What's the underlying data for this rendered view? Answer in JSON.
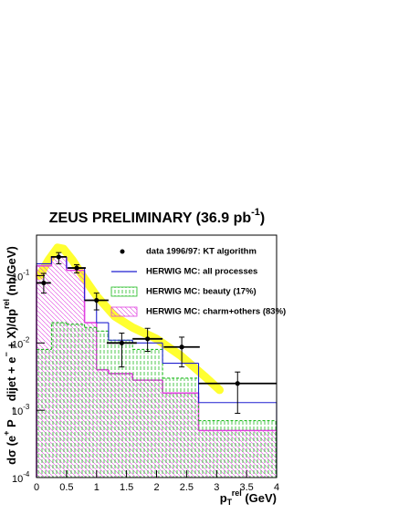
{
  "chart_data": {
    "type": "histogram",
    "title": [
      {
        "text": "ZEUS PRELIMINARY (36.9 pb"
      },
      {
        "text": "-1",
        "shift": "sup"
      },
      {
        "text": ")"
      }
    ],
    "x_label": [
      {
        "text": "p"
      },
      {
        "text": "T",
        "shift": "sub"
      },
      {
        "text": "rel",
        "shift": "sup"
      },
      {
        "text": " (GeV)"
      }
    ],
    "y_label": [
      {
        "text": "dσ (e"
      },
      {
        "text": "+",
        "shift": "sup"
      },
      {
        "text": " P → dijet + e"
      },
      {
        "text": "−",
        "shift": "sup"
      },
      {
        "text": " + X)/dp"
      },
      {
        "text": "rel",
        "shift": "sup"
      },
      {
        "text": " (nb/GeV)"
      }
    ],
    "xlim": [
      0,
      4
    ],
    "xticks": [
      0,
      0.5,
      1,
      1.5,
      2,
      2.5,
      3,
      3.5,
      4
    ],
    "ylim": [
      0.0001,
      0.4
    ],
    "log_y": true,
    "yticks": [
      {
        "value": 0.0001,
        "label": "10",
        "exponent": "-4"
      },
      {
        "value": 0.001,
        "label": "10",
        "exponent": "-3"
      },
      {
        "value": 0.01,
        "label": "10",
        "exponent": "-2"
      },
      {
        "value": 0.1,
        "label": "10",
        "exponent": "-1"
      }
    ],
    "bins": [
      0,
      0.25,
      0.5,
      0.8,
      1.0,
      1.2,
      1.6,
      2.1,
      2.7,
      4
    ],
    "series": [
      {
        "name": "HERWIG MC: all processes",
        "color": "#1f1fd0",
        "fill": "none",
        "values": [
          0.15,
          0.19,
          0.13,
          0.043,
          0.02,
          0.011,
          0.01,
          0.005,
          0.0013
        ]
      },
      {
        "name": "HERWIG MC: beauty (17%)",
        "color": "#22bb22",
        "fill": "vhatch",
        "values": [
          0.008,
          0.02,
          0.019,
          0.017,
          0.015,
          0.011,
          0.008,
          0.003,
          0.0007
        ]
      },
      {
        "name": "HERWIG MC: charm+others (83%)",
        "color": "#e040e0",
        "fill": "dhatch",
        "values": [
          0.14,
          0.19,
          0.12,
          0.02,
          0.004,
          0.0035,
          0.0028,
          0.0018,
          0.0005
        ]
      }
    ],
    "band": {
      "color": "#ffff30",
      "x": [
        0.05,
        0.2,
        0.35,
        0.45,
        0.6,
        0.8,
        1.0,
        1.3,
        1.6,
        2.0,
        2.4,
        2.8,
        3.05
      ],
      "values": [
        0.1,
        0.17,
        0.26,
        0.25,
        0.17,
        0.09,
        0.05,
        0.025,
        0.017,
        0.0115,
        0.0065,
        0.0032,
        0.002
      ]
    },
    "data": {
      "name": "data 1996/97: KT algorithm",
      "color": "#000000",
      "x": [
        0.12,
        0.37,
        0.67,
        1.0,
        1.42,
        1.85,
        2.42,
        3.35
      ],
      "xerr": [
        0.12,
        0.13,
        0.15,
        0.2,
        0.25,
        0.25,
        0.3,
        0.65
      ],
      "y": [
        0.078,
        0.19,
        0.13,
        0.043,
        0.01,
        0.0115,
        0.0087,
        0.0025
      ],
      "yerr_hi": [
        0.03,
        0.03,
        0.015,
        0.012,
        0.004,
        0.005,
        0.0035,
        0.0012
      ],
      "yerr_lo": [
        0.023,
        0.04,
        0.02,
        0.012,
        0.0056,
        0.004,
        0.0043,
        0.0016
      ]
    }
  }
}
